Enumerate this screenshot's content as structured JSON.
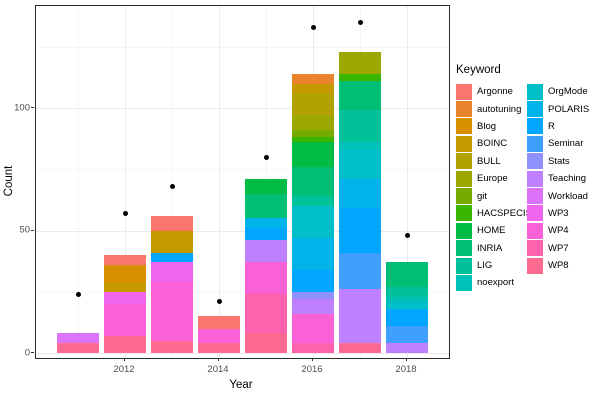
{
  "figure": {
    "background": "#FFFFFF"
  },
  "chart_data": {
    "type": "bar",
    "stacked": true,
    "title": "",
    "xlabel": "Year",
    "ylabel": "Count",
    "grid": true,
    "legend_position": "right",
    "xlim": [
      2010.1,
      2018.9
    ],
    "ylim": [
      0,
      141
    ],
    "x_ticks": [
      2012,
      2014,
      2016,
      2018
    ],
    "x_tick_labels": [
      "2012",
      "2014",
      "2016",
      "2018"
    ],
    "x_minor": [
      2011,
      2013,
      2015,
      2017
    ],
    "y_ticks": [
      0,
      50,
      100
    ],
    "y_tick_labels": [
      "0",
      "50",
      "100"
    ],
    "y_minor": [
      25,
      75,
      125
    ],
    "bars": [
      {
        "year": 2011,
        "total": 8,
        "segments": [
          {
            "keyword": "WP8",
            "value": 4
          },
          {
            "keyword": "Workload",
            "value": 4
          }
        ]
      },
      {
        "year": 2012,
        "total": 40,
        "segments": [
          {
            "keyword": "WP8",
            "value": 7
          },
          {
            "keyword": "WP4",
            "value": 13
          },
          {
            "keyword": "WP3",
            "value": 5
          },
          {
            "keyword": "BOINC",
            "value": 4
          },
          {
            "keyword": "Blog",
            "value": 7
          },
          {
            "keyword": "Argonne",
            "value": 4
          }
        ]
      },
      {
        "year": 2013,
        "total": 56,
        "segments": [
          {
            "keyword": "WP8",
            "value": 5
          },
          {
            "keyword": "WP4",
            "value": 24
          },
          {
            "keyword": "WP3",
            "value": 8
          },
          {
            "keyword": "R",
            "value": 4
          },
          {
            "keyword": "BOINC",
            "value": 9
          },
          {
            "keyword": "Argonne",
            "value": 6
          }
        ]
      },
      {
        "year": 2014,
        "total": 15,
        "segments": [
          {
            "keyword": "WP8",
            "value": 4
          },
          {
            "keyword": "WP4",
            "value": 6
          },
          {
            "keyword": "Argonne",
            "value": 5
          }
        ]
      },
      {
        "year": 2015,
        "total": 71,
        "segments": [
          {
            "keyword": "WP8",
            "value": 8
          },
          {
            "keyword": "WP7",
            "value": 16
          },
          {
            "keyword": "WP4",
            "value": 13
          },
          {
            "keyword": "Teaching",
            "value": 9
          },
          {
            "keyword": "R",
            "value": 5
          },
          {
            "keyword": "POLARIS",
            "value": 4
          },
          {
            "keyword": "INRIA",
            "value": 10
          },
          {
            "keyword": "HOME",
            "value": 6
          }
        ]
      },
      {
        "year": 2016,
        "total": 114,
        "segments": [
          {
            "keyword": "WP7",
            "value": 4
          },
          {
            "keyword": "WP4",
            "value": 12
          },
          {
            "keyword": "Teaching",
            "value": 6
          },
          {
            "keyword": "Stats",
            "value": 3
          },
          {
            "keyword": "R",
            "value": 9
          },
          {
            "keyword": "POLARIS",
            "value": 13
          },
          {
            "keyword": "OrgMode",
            "value": 13
          },
          {
            "keyword": "LIG",
            "value": 4
          },
          {
            "keyword": "INRIA",
            "value": 12
          },
          {
            "keyword": "HOME",
            "value": 10
          },
          {
            "keyword": "HACSPECIS",
            "value": 2
          },
          {
            "keyword": "git",
            "value": 3
          },
          {
            "keyword": "Europe",
            "value": 6
          },
          {
            "keyword": "BULL",
            "value": 9
          },
          {
            "keyword": "BOINC",
            "value": 4
          },
          {
            "keyword": "autotuning",
            "value": 4
          }
        ]
      },
      {
        "year": 2017,
        "total": 123,
        "segments": [
          {
            "keyword": "WP8",
            "value": 4
          },
          {
            "keyword": "Teaching",
            "value": 22
          },
          {
            "keyword": "Seminar",
            "value": 15
          },
          {
            "keyword": "R",
            "value": 18
          },
          {
            "keyword": "POLARIS",
            "value": 12
          },
          {
            "keyword": "OrgMode",
            "value": 12
          },
          {
            "keyword": "noexport",
            "value": 3
          },
          {
            "keyword": "LIG",
            "value": 13
          },
          {
            "keyword": "INRIA",
            "value": 12
          },
          {
            "keyword": "HACSPECIS",
            "value": 3
          },
          {
            "keyword": "Europe",
            "value": 9
          }
        ]
      },
      {
        "year": 2018,
        "total": 37,
        "segments": [
          {
            "keyword": "Teaching",
            "value": 4
          },
          {
            "keyword": "Seminar",
            "value": 7
          },
          {
            "keyword": "R",
            "value": 7
          },
          {
            "keyword": "OrgMode",
            "value": 3
          },
          {
            "keyword": "noexport",
            "value": 2
          },
          {
            "keyword": "LIG",
            "value": 4
          },
          {
            "keyword": "INRIA",
            "value": 10
          }
        ]
      }
    ],
    "points_series": {
      "style": "black-dot",
      "x": [
        2011,
        2012,
        2013,
        2014,
        2015,
        2016,
        2017,
        2018
      ],
      "y": [
        24,
        57,
        68,
        21,
        80,
        133,
        135,
        48
      ]
    }
  },
  "legend": {
    "title": "Keyword",
    "items": [
      {
        "label": "Argonne",
        "color": "#F8766D"
      },
      {
        "label": "autotuning",
        "color": "#E9842C"
      },
      {
        "label": "Blog",
        "color": "#D89000"
      },
      {
        "label": "BOINC",
        "color": "#C69900"
      },
      {
        "label": "BULL",
        "color": "#B2A100"
      },
      {
        "label": "Europe",
        "color": "#9CA700"
      },
      {
        "label": "git",
        "color": "#77AB00"
      },
      {
        "label": "HACSPECIS",
        "color": "#39B600"
      },
      {
        "label": "HOME",
        "color": "#00BB44"
      },
      {
        "label": "INRIA",
        "color": "#00BF74"
      },
      {
        "label": "LIG",
        "color": "#00C19A"
      },
      {
        "label": "noexport",
        "color": "#00C1B7"
      },
      {
        "label": "OrgMode",
        "color": "#00BFC8"
      },
      {
        "label": "POLARIS",
        "color": "#00B3E9"
      },
      {
        "label": "R",
        "color": "#00A6FF"
      },
      {
        "label": "Seminar",
        "color": "#3E9FFF"
      },
      {
        "label": "Stats",
        "color": "#8F91FF"
      },
      {
        "label": "Teaching",
        "color": "#BF80FF"
      },
      {
        "label": "Workload",
        "color": "#DB72F9"
      },
      {
        "label": "WP3",
        "color": "#EF65EC"
      },
      {
        "label": "WP4",
        "color": "#FB61D7"
      },
      {
        "label": "WP7",
        "color": "#FF62AD"
      },
      {
        "label": "WP8",
        "color": "#FF6A90"
      }
    ]
  }
}
